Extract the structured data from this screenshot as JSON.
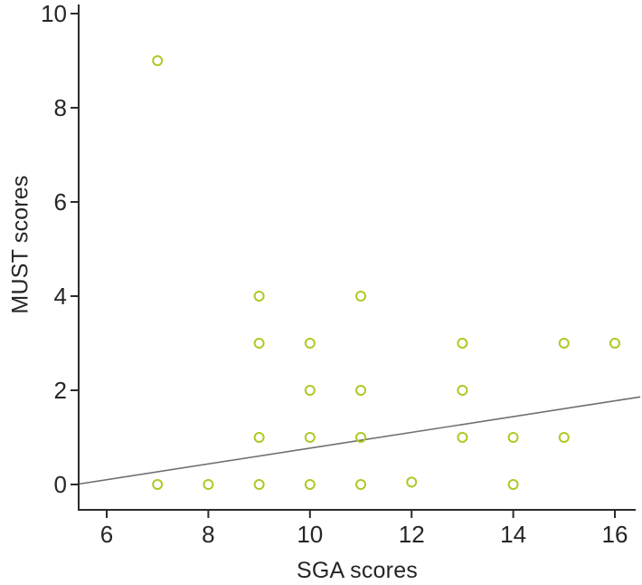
{
  "chart_data": {
    "type": "scatter",
    "title": "",
    "xlabel": "SGA scores",
    "ylabel": "MUST scores",
    "x_ticks": [
      6,
      8,
      10,
      12,
      14,
      16
    ],
    "y_ticks": [
      0,
      2,
      4,
      6,
      8,
      10
    ],
    "xlim": [
      5.45,
      16.55
    ],
    "ylim": [
      -0.55,
      10.2
    ],
    "grid": false,
    "legend": "none",
    "points": [
      [
        7,
        9
      ],
      [
        9,
        4
      ],
      [
        11,
        4
      ],
      [
        9,
        3
      ],
      [
        10,
        3
      ],
      [
        13,
        3
      ],
      [
        15,
        3
      ],
      [
        16,
        3
      ],
      [
        10,
        2
      ],
      [
        11,
        2
      ],
      [
        13,
        2
      ],
      [
        9,
        1
      ],
      [
        10,
        1
      ],
      [
        11,
        1
      ],
      [
        13,
        1
      ],
      [
        14,
        1
      ],
      [
        15,
        1
      ],
      [
        7,
        0
      ],
      [
        8,
        0
      ],
      [
        9,
        0
      ],
      [
        10,
        0
      ],
      [
        11,
        0
      ],
      [
        12,
        0.05
      ],
      [
        14,
        0
      ]
    ],
    "trend_line": {
      "x1": 5.45,
      "y1": 0.01,
      "x2": 16.5,
      "y2": 1.86
    },
    "marker": {
      "shape": "open-circle",
      "color": "#aec925",
      "radius_px": 5,
      "stroke_px": 2
    },
    "trend_color": "#6f6f6f",
    "axis_color": "#2b2b2b",
    "text_color": "#262626"
  }
}
